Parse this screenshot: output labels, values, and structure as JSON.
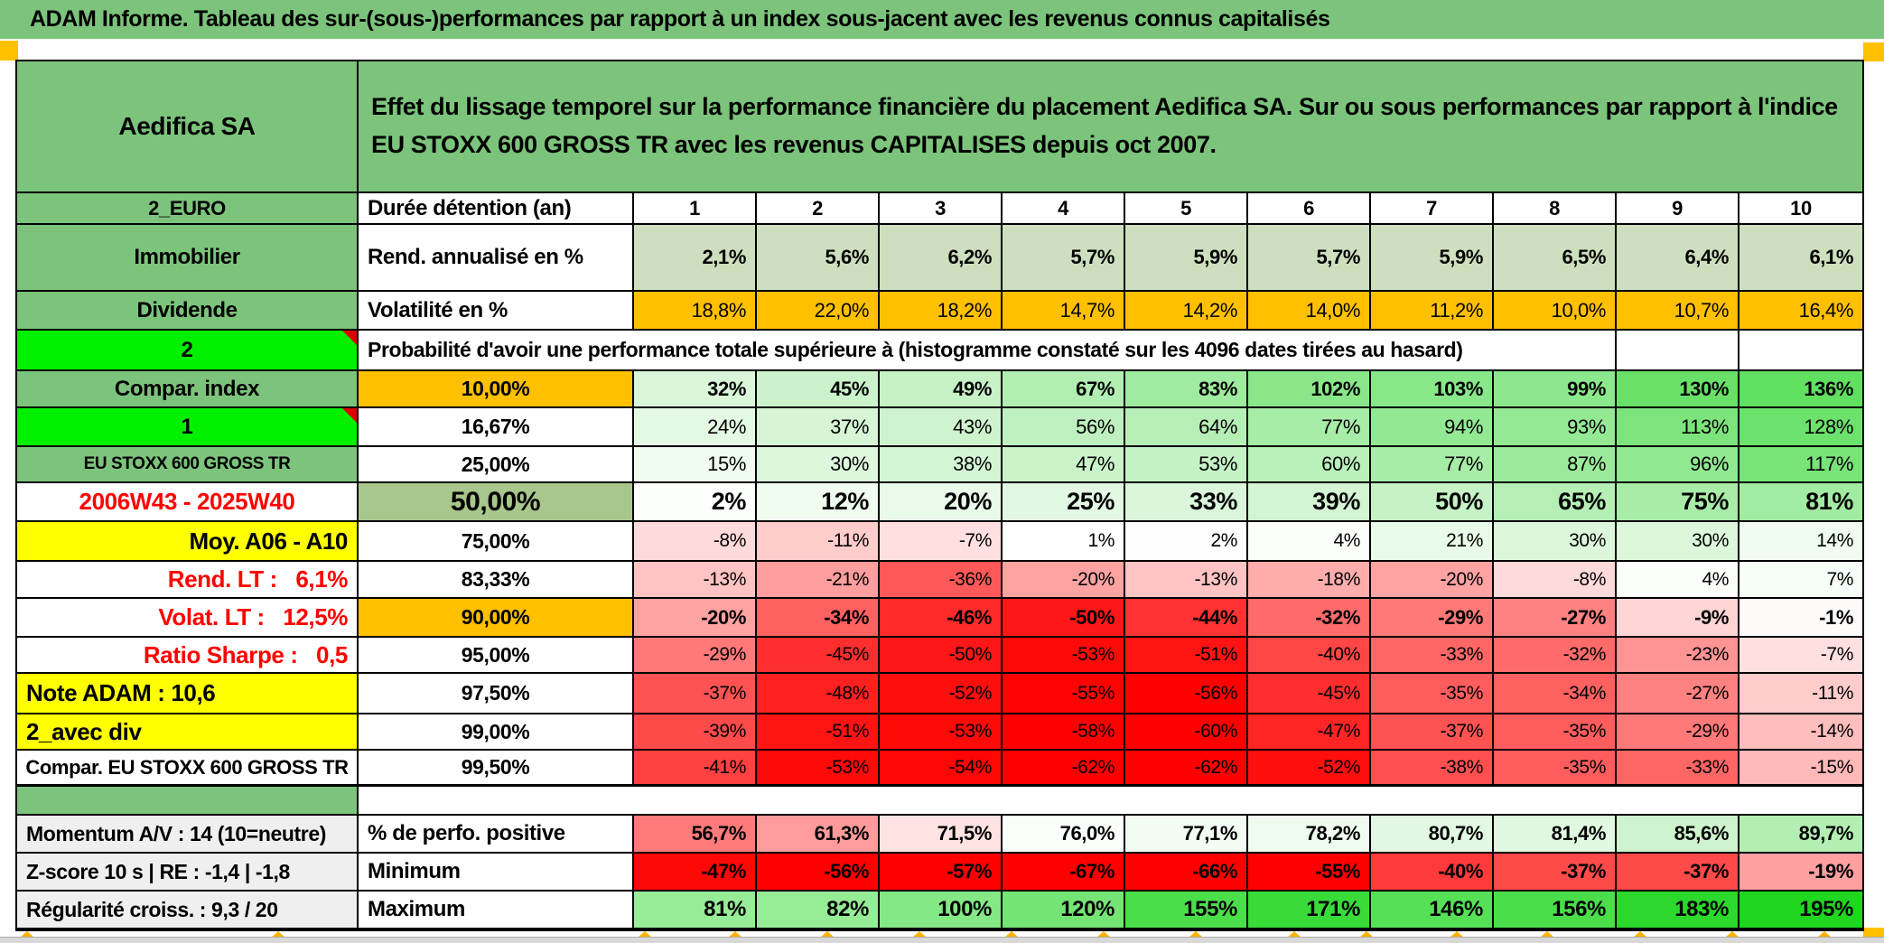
{
  "app": {
    "title": "ADAM Informe. Tableau des sur-(sous-)performances par rapport à un index sous-jacent avec les revenus connus capitalisés"
  },
  "header": {
    "company": "Aedifica SA",
    "description": "Effet du lissage temporel sur la performance financière du placement Aedifica SA. Sur ou sous performances par rapport à l'indice EU STOXX 600 GROSS TR avec les revenus CAPITALISES depuis oct 2007."
  },
  "colors": {
    "header_green": "#7CC47C",
    "bright_green": "#00F000",
    "accent_orange": "#FFC000",
    "accent_yellow": "#FFFF00",
    "sage_green": "#A8C78C",
    "rend_row_green": "#CDDFBE",
    "label_gray": "#EFEFEF",
    "negative_red": "#FF0000",
    "positive_green": "#00D900",
    "comment_marker_red": "#DD0000"
  },
  "table": {
    "columns": [
      "1",
      "2",
      "3",
      "4",
      "5",
      "6",
      "7",
      "8",
      "9",
      "10"
    ],
    "rows": [
      {
        "id": "duration",
        "left": "2_EURO",
        "mid": "Durée détention (an)"
      },
      {
        "id": "rend",
        "left": "Immobilier",
        "mid": "Rend. annualisé en %",
        "values": [
          "2,1%",
          "5,6%",
          "6,2%",
          "5,7%",
          "5,9%",
          "5,7%",
          "5,9%",
          "6,5%",
          "6,4%",
          "6,1%"
        ],
        "colors": "#CDDFBE"
      },
      {
        "id": "vol",
        "left": "Dividende",
        "mid": "Volatilité en %",
        "values": [
          "18,8%",
          "22,0%",
          "18,2%",
          "14,7%",
          "14,2%",
          "14,0%",
          "11,2%",
          "10,0%",
          "10,7%",
          "16,4%"
        ],
        "colors": "#FFC000"
      },
      {
        "id": "proba",
        "left": "2",
        "corner": true,
        "mid": "Probabilité d'avoir une performance totale supérieure à (histogramme constaté sur les 4096 dates tirées au hasard)"
      },
      {
        "id": "p10",
        "left": "Compar. index",
        "mid": "10,00%",
        "values": [
          "32%",
          "45%",
          "49%",
          "67%",
          "83%",
          "102%",
          "103%",
          "99%",
          "130%",
          "136%"
        ],
        "colors": [
          "#D9F6D9",
          "#CBF3CB",
          "#C6F2C6",
          "#B1EEB1",
          "#9FEB9F",
          "#89E789",
          "#88E788",
          "#8CE88C",
          "#69E169",
          "#61DF61"
        ]
      },
      {
        "id": "p1667",
        "left": "1",
        "corner": true,
        "mid": "16,67%",
        "values": [
          "24%",
          "37%",
          "43%",
          "56%",
          "64%",
          "77%",
          "94%",
          "93%",
          "113%",
          "128%"
        ],
        "colors": [
          "#E4F9E4",
          "#D5F5D5",
          "#CEF4CE",
          "#BFF0BF",
          "#B6EFB6",
          "#A7ECA7",
          "#93E993",
          "#94E994",
          "#7DE47D",
          "#6CE16C"
        ]
      },
      {
        "id": "p25",
        "left": "EU STOXX 600 GROSS TR",
        "mid": "25,00%",
        "values": [
          "15%",
          "30%",
          "38%",
          "47%",
          "53%",
          "60%",
          "77%",
          "87%",
          "96%",
          "117%"
        ],
        "colors": [
          "#EFFCEF",
          "#DDF7DD",
          "#D4F5D4",
          "#CAF3CA",
          "#C5F2C5",
          "#BAF0BA",
          "#A7ECA7",
          "#9BEA9B",
          "#91E991",
          "#78E478"
        ]
      },
      {
        "id": "p50",
        "left": "2006W43 - 2025W40",
        "mid": "50,00%",
        "values": [
          "2%",
          "12%",
          "20%",
          "25%",
          "33%",
          "39%",
          "50%",
          "65%",
          "75%",
          "81%"
        ],
        "colors": [
          "#FDFFFD",
          "#F1FCF1",
          "#E9FAE9",
          "#E3F8E3",
          "#DAF6DA",
          "#D3F5D3",
          "#C6F2C6",
          "#B5EFB5",
          "#A9ECA9",
          "#A2EBA2"
        ]
      },
      {
        "id": "p75",
        "left": "Moy. A06 - A10",
        "mid": "75,00%",
        "values": [
          "-8%",
          "-11%",
          "-7%",
          "1%",
          "2%",
          "4%",
          "21%",
          "30%",
          "30%",
          "14%"
        ],
        "colors": [
          "#FFDADA",
          "#FFCCCC",
          "#FFDFDF",
          "#FEFFFE",
          "#FDFEFD",
          "#FBFEFB",
          "#E8FAE8",
          "#DDF7DD",
          "#DDF7DD",
          "#EFFCEF"
        ]
      },
      {
        "id": "p8333",
        "left": "Rend. LT :   6,1%",
        "mid": "83,33%",
        "values": [
          "-13%",
          "-21%",
          "-36%",
          "-20%",
          "-13%",
          "-18%",
          "-20%",
          "-8%",
          "4%",
          "7%"
        ],
        "colors": [
          "#FFC3C3",
          "#FF9E9E",
          "#FF5858",
          "#FFA2A2",
          "#FFC3C3",
          "#FFACAC",
          "#FFA2A2",
          "#FFDADA",
          "#FBFEFB",
          "#F7FDF7"
        ]
      },
      {
        "id": "p90",
        "left": "Volat. LT :   12,5%",
        "mid": "90,00%",
        "values": [
          "-20%",
          "-34%",
          "-46%",
          "-50%",
          "-44%",
          "-32%",
          "-29%",
          "-27%",
          "-9%",
          "-1%"
        ],
        "colors": [
          "#FFA2A2",
          "#FF6161",
          "#FF2A2A",
          "#FF1717",
          "#FF3333",
          "#FF6B6B",
          "#FF7979",
          "#FF8282",
          "#FFD5D5",
          "#FFFAFA"
        ]
      },
      {
        "id": "p95",
        "left": "Ratio Sharpe :   0,5",
        "mid": "95,00%",
        "values": [
          "-29%",
          "-45%",
          "-50%",
          "-53%",
          "-51%",
          "-40%",
          "-33%",
          "-32%",
          "-23%",
          "-7%"
        ],
        "colors": [
          "#FF7979",
          "#FF2E2E",
          "#FF1717",
          "#FF0909",
          "#FF1313",
          "#FF4646",
          "#FF6666",
          "#FF6B6B",
          "#FF9494",
          "#FFDFDF"
        ]
      },
      {
        "id": "p975",
        "left": "Note ADAM : 10,6",
        "mid": "97,50%",
        "values": [
          "-37%",
          "-48%",
          "-52%",
          "-55%",
          "-56%",
          "-45%",
          "-35%",
          "-34%",
          "-27%",
          "-11%"
        ],
        "colors": [
          "#FF5353",
          "#FF2020",
          "#FF0E0E",
          "#FF0202",
          "#FF0000",
          "#FF2E2E",
          "#FF5D5D",
          "#FF6161",
          "#FF8282",
          "#FFCCCC"
        ]
      },
      {
        "id": "p99",
        "left": "2_avec div",
        "mid": "99,00%",
        "values": [
          "-39%",
          "-51%",
          "-53%",
          "-58%",
          "-60%",
          "-47%",
          "-37%",
          "-35%",
          "-29%",
          "-14%"
        ],
        "colors": [
          "#FF4A4A",
          "#FF1313",
          "#FF0909",
          "#FF0000",
          "#FF0000",
          "#FF2525",
          "#FF5353",
          "#FF5D5D",
          "#FF7979",
          "#FFBEBE"
        ]
      },
      {
        "id": "p995",
        "left": "Compar. EU STOXX 600 GROSS TR",
        "mid": "99,50%",
        "values": [
          "-41%",
          "-53%",
          "-54%",
          "-62%",
          "-62%",
          "-52%",
          "-38%",
          "-35%",
          "-33%",
          "-15%"
        ],
        "colors": [
          "#FF4141",
          "#FF0909",
          "#FF0505",
          "#FF0000",
          "#FF0000",
          "#FF0E0E",
          "#FF4F4F",
          "#FF5D5D",
          "#FF6666",
          "#FFB9B9"
        ]
      },
      {
        "id": "sep",
        "left": ""
      },
      {
        "id": "perfo",
        "left": "Momentum A/V : 14 (10=neutre)",
        "mid": "% de perfo. positive",
        "values": [
          "56,7%",
          "61,3%",
          "71,5%",
          "76,0%",
          "77,1%",
          "78,2%",
          "80,7%",
          "81,4%",
          "85,6%",
          "89,7%"
        ],
        "colors": [
          "#FF7A7A",
          "#FF9B9B",
          "#FFE2E2",
          "#FAFEFA",
          "#F3FCF3",
          "#EEFBEE",
          "#E2F8E2",
          "#DFF8DF",
          "#CDF4CD",
          "#B3EFB3"
        ]
      },
      {
        "id": "min",
        "left": "Z-score 10 s | RE : -1,4 | -1,8",
        "mid": "Minimum",
        "values": [
          "-47%",
          "-56%",
          "-57%",
          "-67%",
          "-66%",
          "-55%",
          "-40%",
          "-37%",
          "-37%",
          "-19%"
        ],
        "colors": [
          "#FF0808",
          "#FF0000",
          "#FF0000",
          "#FF0000",
          "#FF0000",
          "#FF0000",
          "#FF3A3A",
          "#FF4A4A",
          "#FF4A4A",
          "#FFA0A0"
        ]
      },
      {
        "id": "max",
        "left": "Régularité croiss. : 9,3 / 20",
        "mid": "Maximum",
        "values": [
          "81%",
          "82%",
          "100%",
          "120%",
          "155%",
          "171%",
          "146%",
          "156%",
          "183%",
          "195%"
        ],
        "colors": [
          "#97EC97",
          "#95EC95",
          "#84E884",
          "#74E574",
          "#4BDE4B",
          "#39DB39",
          "#56E056",
          "#4ADE4A",
          "#2BD82B",
          "#20D620"
        ]
      }
    ]
  }
}
